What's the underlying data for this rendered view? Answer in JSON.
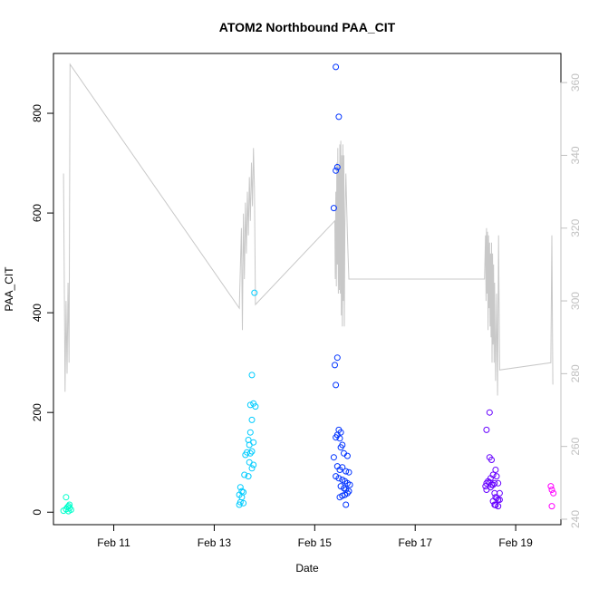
{
  "chart_data": {
    "type": "scatter",
    "title": "ATOM2 Northbound PAA_CIT",
    "xlabel": "Date",
    "ylabel": "PAA_CIT",
    "x_ticks": [
      "Feb 11",
      "Feb 13",
      "Feb 15",
      "Feb 17",
      "Feb 19"
    ],
    "x_tick_values": [
      11,
      13,
      15,
      17,
      19
    ],
    "xlim": [
      9.8,
      19.9
    ],
    "y_ticks": [
      0,
      200,
      400,
      600,
      800
    ],
    "ylim": [
      -25,
      920
    ],
    "y2_ticks": [
      240,
      260,
      280,
      300,
      320,
      340,
      360
    ],
    "y2lim": [
      238.5,
      368
    ],
    "colors": {
      "line": "#c8c8c8",
      "right_axis": "#c0c0c0",
      "points": [
        "#00ffcc",
        "#00ccff",
        "#0033ff",
        "#6600ff",
        "#ff00ff"
      ]
    },
    "series": [
      {
        "label": "",
        "axis": "left",
        "points": [
          [
            10.05,
            30,
            0
          ],
          [
            10.1,
            12,
            0
          ],
          [
            10.08,
            10,
            0
          ],
          [
            10.12,
            8,
            0
          ],
          [
            10.15,
            5,
            0
          ],
          [
            10.0,
            3,
            0
          ],
          [
            10.05,
            6,
            0
          ],
          [
            10.12,
            15,
            0
          ],
          [
            10.1,
            2,
            0
          ],
          [
            13.8,
            440,
            1
          ],
          [
            13.75,
            275,
            1
          ],
          [
            13.72,
            215,
            1
          ],
          [
            13.78,
            218,
            1
          ],
          [
            13.82,
            212,
            1
          ],
          [
            13.75,
            185,
            1
          ],
          [
            13.72,
            160,
            1
          ],
          [
            13.68,
            145,
            1
          ],
          [
            13.78,
            140,
            1
          ],
          [
            13.7,
            135,
            1
          ],
          [
            13.65,
            120,
            1
          ],
          [
            13.75,
            122,
            1
          ],
          [
            13.72,
            118,
            1
          ],
          [
            13.62,
            115,
            1
          ],
          [
            13.7,
            100,
            1
          ],
          [
            13.78,
            95,
            1
          ],
          [
            13.75,
            88,
            1
          ],
          [
            13.6,
            75,
            1
          ],
          [
            13.68,
            72,
            1
          ],
          [
            13.52,
            50,
            1
          ],
          [
            13.55,
            42,
            1
          ],
          [
            13.58,
            40,
            1
          ],
          [
            13.5,
            35,
            1
          ],
          [
            13.55,
            30,
            1
          ],
          [
            13.52,
            20,
            1
          ],
          [
            13.58,
            18,
            1
          ],
          [
            13.5,
            15,
            1
          ],
          [
            15.42,
            893,
            2
          ],
          [
            15.48,
            793,
            2
          ],
          [
            15.45,
            692,
            2
          ],
          [
            15.42,
            685,
            2
          ],
          [
            15.38,
            610,
            2
          ],
          [
            15.45,
            310,
            2
          ],
          [
            15.4,
            295,
            2
          ],
          [
            15.42,
            255,
            2
          ],
          [
            15.48,
            165,
            2
          ],
          [
            15.52,
            160,
            2
          ],
          [
            15.45,
            155,
            2
          ],
          [
            15.42,
            150,
            2
          ],
          [
            15.5,
            148,
            2
          ],
          [
            15.55,
            135,
            2
          ],
          [
            15.52,
            130,
            2
          ],
          [
            15.58,
            118,
            2
          ],
          [
            15.65,
            113,
            2
          ],
          [
            15.38,
            110,
            2
          ],
          [
            15.45,
            92,
            2
          ],
          [
            15.55,
            90,
            2
          ],
          [
            15.5,
            85,
            2
          ],
          [
            15.62,
            82,
            2
          ],
          [
            15.68,
            80,
            2
          ],
          [
            15.42,
            72,
            2
          ],
          [
            15.48,
            68,
            2
          ],
          [
            15.55,
            65,
            2
          ],
          [
            15.6,
            62,
            2
          ],
          [
            15.65,
            58,
            2
          ],
          [
            15.7,
            55,
            2
          ],
          [
            15.52,
            52,
            2
          ],
          [
            15.58,
            48,
            2
          ],
          [
            15.62,
            45,
            2
          ],
          [
            15.68,
            42,
            2
          ],
          [
            15.65,
            38,
            2
          ],
          [
            15.6,
            35,
            2
          ],
          [
            15.55,
            33,
            2
          ],
          [
            15.5,
            30,
            2
          ],
          [
            15.62,
            15,
            2
          ],
          [
            18.48,
            200,
            3
          ],
          [
            18.42,
            165,
            3
          ],
          [
            18.48,
            110,
            3
          ],
          [
            18.52,
            105,
            3
          ],
          [
            18.6,
            85,
            3
          ],
          [
            18.55,
            75,
            3
          ],
          [
            18.62,
            72,
            3
          ],
          [
            18.5,
            68,
            3
          ],
          [
            18.45,
            62,
            3
          ],
          [
            18.48,
            60,
            3
          ],
          [
            18.42,
            58,
            3
          ],
          [
            18.58,
            58,
            3
          ],
          [
            18.65,
            58,
            3
          ],
          [
            18.52,
            55,
            3
          ],
          [
            18.55,
            55,
            3
          ],
          [
            18.4,
            52,
            3
          ],
          [
            18.5,
            50,
            3
          ],
          [
            18.42,
            45,
            3
          ],
          [
            18.58,
            38,
            3
          ],
          [
            18.68,
            38,
            3
          ],
          [
            18.6,
            30,
            3
          ],
          [
            18.62,
            28,
            3
          ],
          [
            18.65,
            25,
            3
          ],
          [
            18.68,
            25,
            3
          ],
          [
            18.55,
            22,
            3
          ],
          [
            18.58,
            15,
            3
          ],
          [
            18.6,
            14,
            3
          ],
          [
            18.65,
            12,
            3
          ],
          [
            19.7,
            52,
            4
          ],
          [
            19.72,
            45,
            4
          ],
          [
            19.75,
            38,
            4
          ],
          [
            19.72,
            12,
            4
          ]
        ]
      },
      {
        "label": "",
        "axis": "right",
        "line": [
          [
            10.0,
            335
          ],
          [
            10.03,
            275
          ],
          [
            10.05,
            300
          ],
          [
            10.07,
            280
          ],
          [
            10.09,
            305
          ],
          [
            10.11,
            283
          ],
          [
            10.13,
            365
          ],
          [
            13.5,
            298
          ],
          [
            13.54,
            320
          ],
          [
            13.56,
            292
          ],
          [
            13.58,
            324
          ],
          [
            13.6,
            306
          ],
          [
            13.62,
            327
          ],
          [
            13.64,
            313
          ],
          [
            13.66,
            330
          ],
          [
            13.68,
            318
          ],
          [
            13.7,
            334
          ],
          [
            13.72,
            322
          ],
          [
            13.74,
            338
          ],
          [
            13.76,
            326
          ],
          [
            13.78,
            342
          ],
          [
            13.8,
            331
          ],
          [
            13.82,
            299
          ],
          [
            15.4,
            322
          ],
          [
            15.41,
            306
          ],
          [
            15.42,
            330
          ],
          [
            15.43,
            304
          ],
          [
            15.44,
            338
          ],
          [
            15.45,
            310
          ],
          [
            15.46,
            342
          ],
          [
            15.47,
            302
          ],
          [
            15.48,
            337
          ],
          [
            15.49,
            303
          ],
          [
            15.5,
            343
          ],
          [
            15.51,
            302
          ],
          [
            15.52,
            344
          ],
          [
            15.53,
            296
          ],
          [
            15.54,
            340
          ],
          [
            15.55,
            293
          ],
          [
            15.56,
            343
          ],
          [
            15.57,
            300
          ],
          [
            15.58,
            340
          ],
          [
            15.59,
            293
          ],
          [
            15.6,
            320
          ],
          [
            15.62,
            335
          ],
          [
            15.65,
            318
          ],
          [
            15.68,
            306
          ],
          [
            18.38,
            306
          ],
          [
            18.4,
            318
          ],
          [
            18.41,
            300
          ],
          [
            18.42,
            320
          ],
          [
            18.43,
            302
          ],
          [
            18.44,
            319
          ],
          [
            18.45,
            292
          ],
          [
            18.46,
            318
          ],
          [
            18.47,
            298
          ],
          [
            18.48,
            316
          ],
          [
            18.49,
            293
          ],
          [
            18.5,
            313
          ],
          [
            18.51,
            290
          ],
          [
            18.52,
            316
          ],
          [
            18.53,
            283
          ],
          [
            18.54,
            313
          ],
          [
            18.55,
            288
          ],
          [
            18.56,
            310
          ],
          [
            18.57,
            283
          ],
          [
            18.58,
            305
          ],
          [
            18.6,
            278
          ],
          [
            18.62,
            302
          ],
          [
            18.64,
            274
          ],
          [
            18.66,
            318
          ],
          [
            18.68,
            281
          ],
          [
            19.7,
            283
          ],
          [
            19.72,
            318
          ],
          [
            19.74,
            277
          ]
        ]
      }
    ]
  }
}
